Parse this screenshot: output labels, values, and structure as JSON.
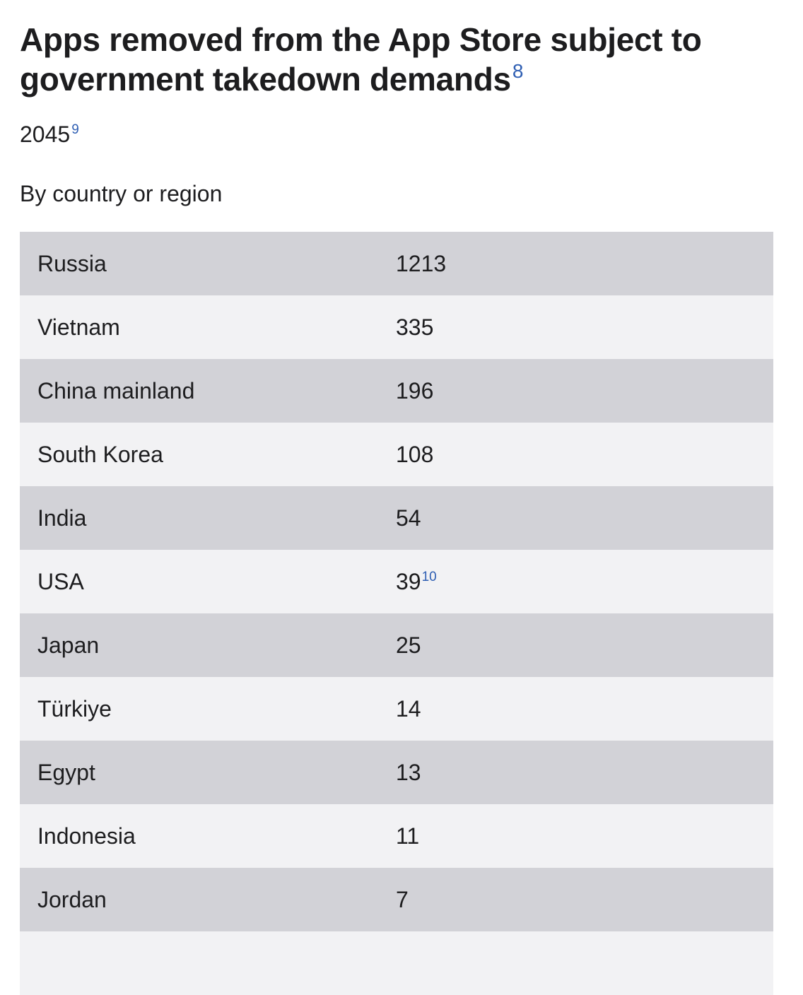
{
  "section": {
    "title": "Apps removed from the App Store subject to government takedown demands",
    "title_footnote": "8",
    "total": "2045",
    "total_footnote": "9",
    "subtitle": "By country or region"
  },
  "table": {
    "rows": [
      {
        "country": "Russia",
        "count": "1213",
        "footnote": ""
      },
      {
        "country": "Vietnam",
        "count": "335",
        "footnote": ""
      },
      {
        "country": "China mainland",
        "count": "196",
        "footnote": ""
      },
      {
        "country": "South Korea",
        "count": "108",
        "footnote": ""
      },
      {
        "country": "India",
        "count": "54",
        "footnote": ""
      },
      {
        "country": "USA",
        "count": "39",
        "footnote": "10"
      },
      {
        "country": "Japan",
        "count": "25",
        "footnote": ""
      },
      {
        "country": "Türkiye",
        "count": "14",
        "footnote": ""
      },
      {
        "country": "Egypt",
        "count": "13",
        "footnote": ""
      },
      {
        "country": "Indonesia",
        "count": "11",
        "footnote": ""
      },
      {
        "country": "Jordan",
        "count": "7",
        "footnote": ""
      },
      {
        "country": "",
        "count": "",
        "footnote": ""
      }
    ]
  },
  "colors": {
    "row_dark": "#d2d2d7",
    "row_light": "#f2f2f4",
    "footnote_link": "#2f5fb3",
    "text": "#1d1d1f"
  }
}
